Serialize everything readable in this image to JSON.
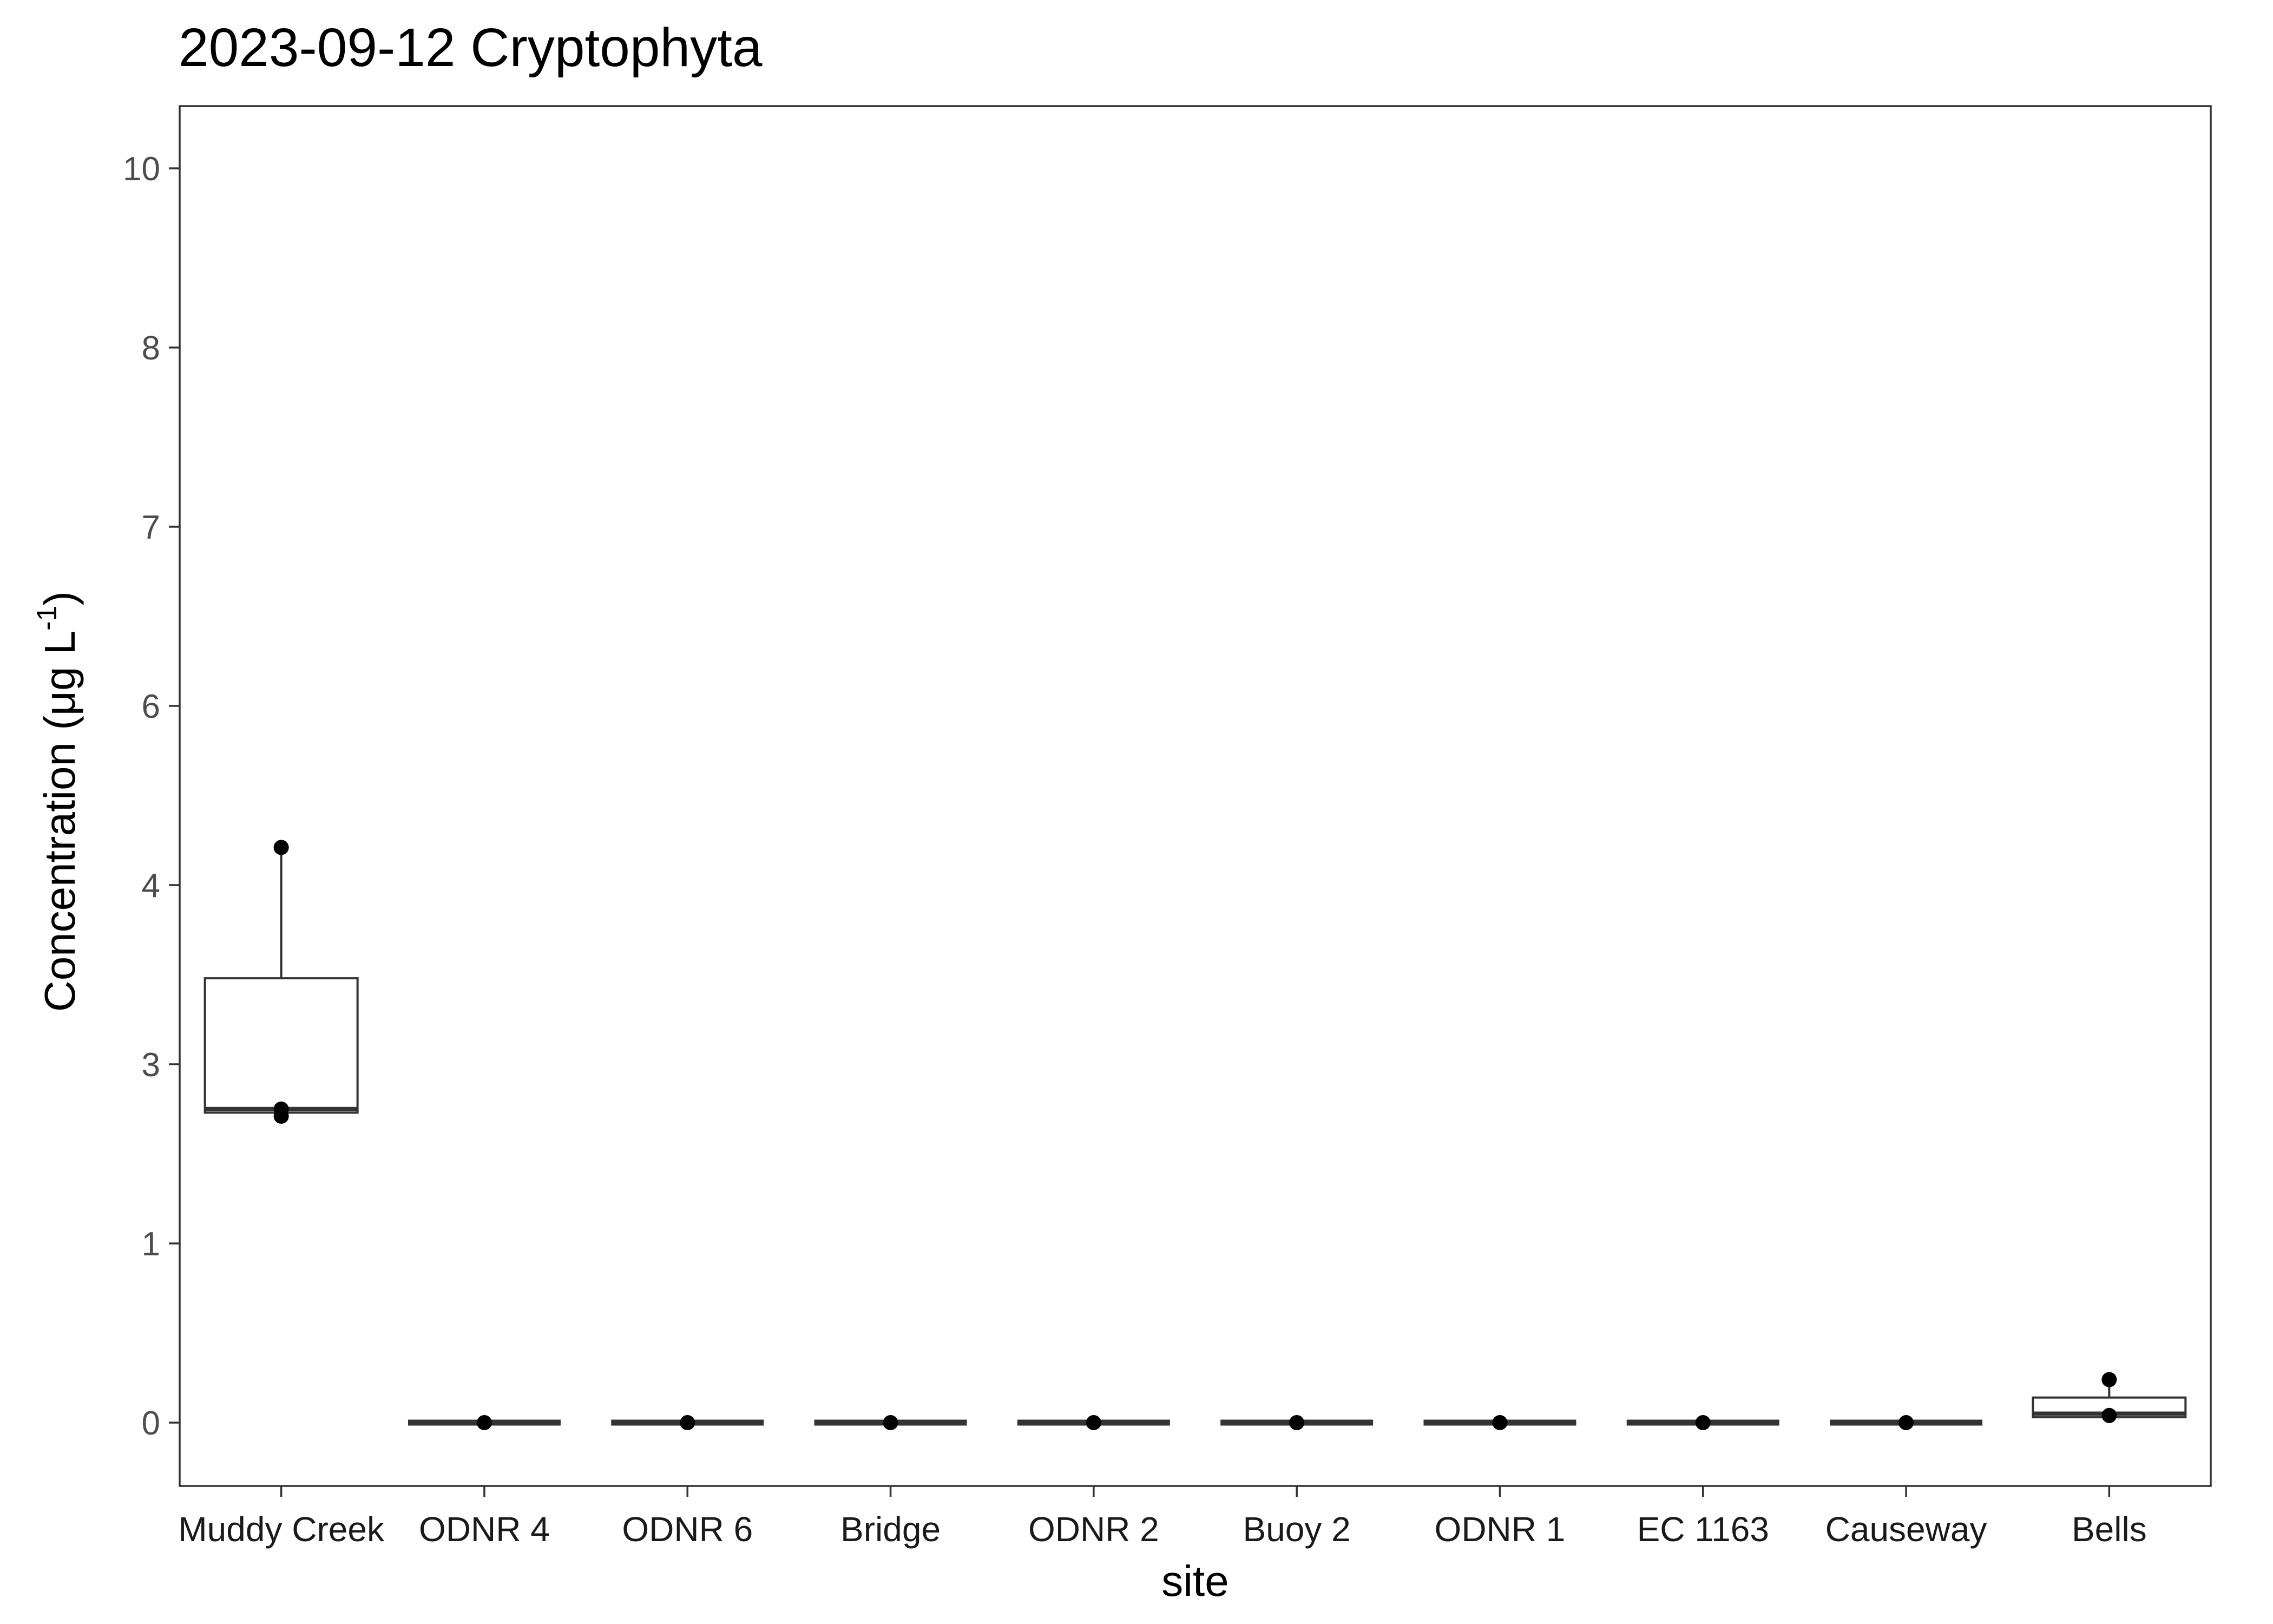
{
  "chart_data": {
    "type": "box",
    "title": "2023-09-12 Cryptophyta",
    "xlabel": "site",
    "ylabel_main": "Concentration (μg L",
    "ylabel_sup": "-1",
    "ylabel_close": ")",
    "y_ticks": [
      0,
      1,
      3,
      4,
      6,
      7,
      8,
      10
    ],
    "y_tick_labels": [
      "0",
      "1",
      "3",
      "4",
      "6",
      "7",
      "8",
      "10"
    ],
    "y_axis_note": "non-linear (transformed) scale; tick labels as printed",
    "categories": [
      "Muddy Creek",
      "ODNR 4",
      "ODNR 6",
      "Bridge",
      "ODNR 2",
      "Buoy 2",
      "ODNR 1",
      "EC 1163",
      "Causeway",
      "Bells"
    ],
    "boxes": [
      {
        "site": "Muddy Creek",
        "lower": 2.45,
        "q1": 2.46,
        "median": 2.5,
        "q3": 3.48,
        "upper": 4.42,
        "points": [
          4.42,
          2.5,
          2.42
        ]
      },
      {
        "site": "ODNR 4",
        "lower": 0,
        "q1": 0,
        "median": 0,
        "q3": 0,
        "upper": 0,
        "points": [
          0
        ]
      },
      {
        "site": "ODNR 6",
        "lower": 0,
        "q1": 0,
        "median": 0,
        "q3": 0,
        "upper": 0,
        "points": [
          0
        ]
      },
      {
        "site": "Bridge",
        "lower": 0,
        "q1": 0,
        "median": 0,
        "q3": 0,
        "upper": 0,
        "points": [
          0
        ]
      },
      {
        "site": "ODNR 2",
        "lower": 0,
        "q1": 0,
        "median": 0,
        "q3": 0,
        "upper": 0,
        "points": [
          0
        ]
      },
      {
        "site": "Buoy 2",
        "lower": 0,
        "q1": 0,
        "median": 0,
        "q3": 0,
        "upper": 0,
        "points": [
          0
        ]
      },
      {
        "site": "ODNR 1",
        "lower": 0,
        "q1": 0,
        "median": 0,
        "q3": 0,
        "upper": 0,
        "points": [
          0
        ]
      },
      {
        "site": "EC 1163",
        "lower": 0,
        "q1": 0,
        "median": 0,
        "q3": 0,
        "upper": 0,
        "points": [
          0
        ]
      },
      {
        "site": "Causeway",
        "lower": 0,
        "q1": 0,
        "median": 0,
        "q3": 0,
        "upper": 0,
        "points": [
          0
        ]
      },
      {
        "site": "Bells",
        "lower": 0.03,
        "q1": 0.03,
        "median": 0.05,
        "q3": 0.14,
        "upper": 0.24,
        "points": [
          0.24,
          0.04
        ]
      }
    ],
    "grid": false,
    "legend": "none",
    "colors": {
      "box_fill": "#ffffff",
      "box_stroke": "#333333",
      "point": "#000000",
      "panel_border": "#333333",
      "tick": "#333333"
    }
  }
}
